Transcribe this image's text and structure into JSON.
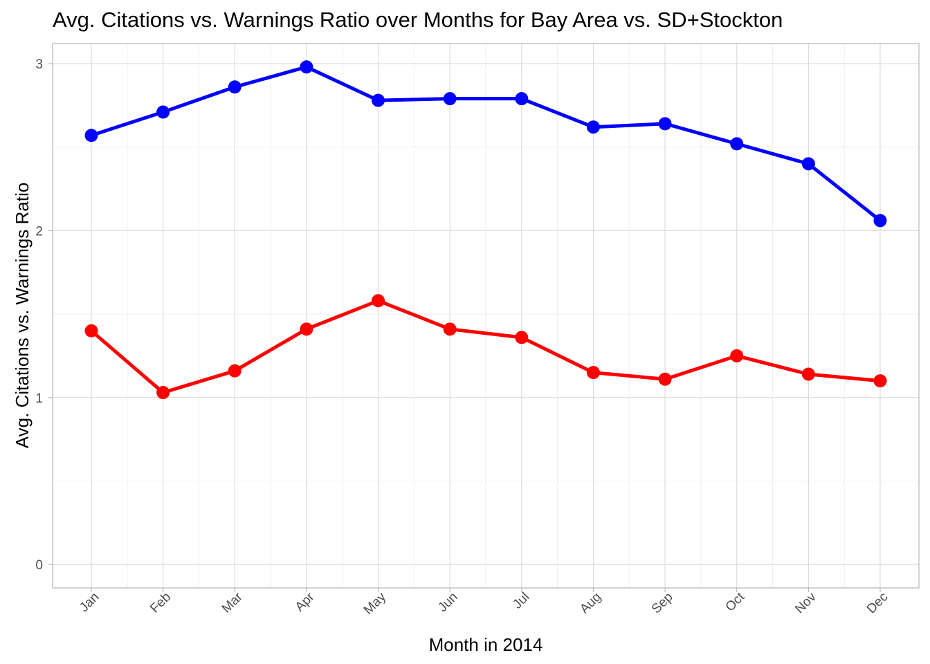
{
  "chart_data": {
    "type": "line",
    "title": "Avg. Citations vs. Warnings Ratio over Months for Bay Area vs. SD+Stockton",
    "xlabel": "Month in 2014",
    "ylabel": "Avg. Citations vs. Warnings Ratio",
    "categories": [
      "Jan",
      "Feb",
      "Mar",
      "Apr",
      "May",
      "Jun",
      "Jul",
      "Aug",
      "Sep",
      "Oct",
      "Nov",
      "Dec"
    ],
    "yticks": [
      "0",
      "1",
      "2",
      "3"
    ],
    "ylim": [
      -0.14,
      3.12
    ],
    "grid": true,
    "legend": "none",
    "series": [
      {
        "color": "#0000ff",
        "values": [
          2.57,
          2.71,
          2.86,
          2.98,
          2.78,
          2.79,
          2.79,
          2.62,
          2.64,
          2.52,
          2.4,
          2.06
        ]
      },
      {
        "color": "#ff0000",
        "values": [
          1.4,
          1.03,
          1.16,
          1.41,
          1.58,
          1.41,
          1.36,
          1.15,
          1.11,
          1.25,
          1.14,
          1.1
        ]
      }
    ]
  }
}
